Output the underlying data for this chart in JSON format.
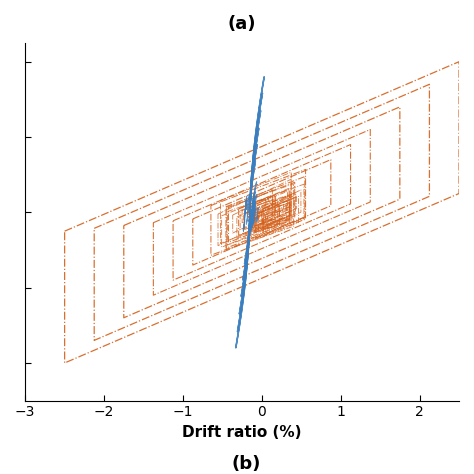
{
  "title_top": "(a)",
  "title_bottom": "(b)",
  "xlabel": "Drift ratio (%)",
  "xlim": [
    -3,
    2.5
  ],
  "ylim_show": true,
  "x_ticks": [
    -3,
    -2,
    -1,
    0,
    1,
    2
  ],
  "blue_color": "#3a7ebf",
  "orange_color": "#d4601a",
  "background_color": "#ffffff",
  "figsize": [
    4.74,
    4.74
  ],
  "dpi": 100
}
